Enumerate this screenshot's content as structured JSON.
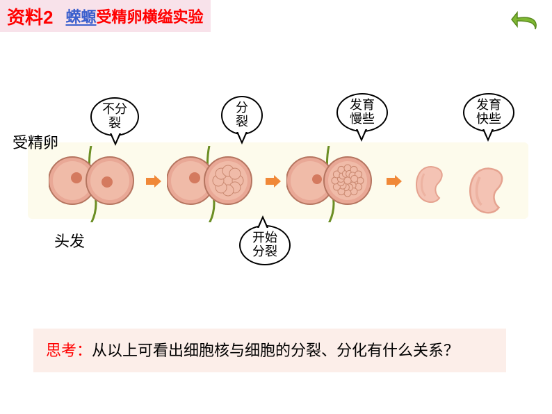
{
  "colors": {
    "title_bg": "#f8e2ea",
    "title_prefix": "#ff0000",
    "title_link": "#3a5fcd",
    "title_rest": "#ff0000",
    "return_btn": "#7fb833",
    "return_btn_dark": "#5a8a1f",
    "diagram_bg": "#fdfbec",
    "cell_outer": "#e9a896",
    "cell_inner": "#f0bba8",
    "cell_core": "#d47a5f",
    "embryo": "#f4c3b4",
    "embryo_shade": "#e5a390",
    "hair": "#6b8e23",
    "arrow": "#f08838",
    "question_bg": "#fceee9",
    "question_prefix": "#ff0000",
    "question_text": "#000000",
    "label_text": "#000000"
  },
  "title": {
    "prefix": "资料2",
    "link_text": "蝾螈",
    "rest": "受精卵横缢实验"
  },
  "return_button": {
    "name": "return"
  },
  "labels": {
    "fertilized_egg": "受精卵",
    "hair": "头发"
  },
  "speech": {
    "no_split": "不分\n裂",
    "split": "分\n裂",
    "slow_dev": "发育\n慢些",
    "fast_dev": "发育\n快些",
    "start_split": "开始\n分裂"
  },
  "question": {
    "prefix": "思考：",
    "body": "从以上可看出细胞核与细胞的分裂、分化有什么关系？"
  },
  "diagram": {
    "stages": 4,
    "background_height": 110,
    "cell_radius": 34,
    "embryo_count": 2
  }
}
